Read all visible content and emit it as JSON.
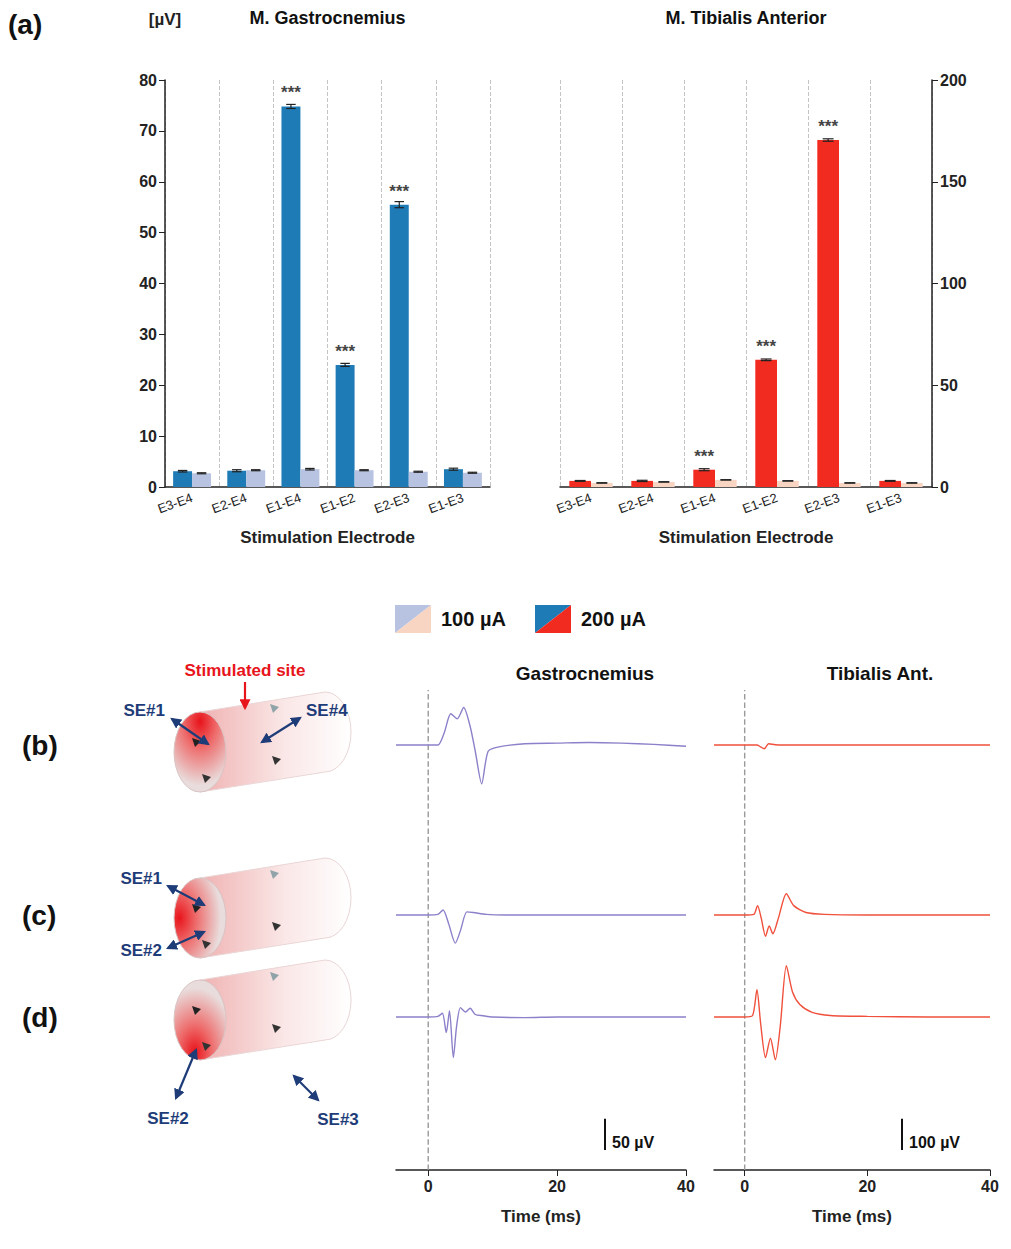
{
  "panel_labels": [
    "(a)",
    "(b)",
    "(c)",
    "(d)"
  ],
  "chart_data": [
    {
      "type": "bar",
      "title": "M. Gastrocnemius",
      "y_label": "[µV]",
      "x_label": "Stimulation Electrode",
      "categories": [
        "E3-E4",
        "E2-E4",
        "E1-E4",
        "E1-E2",
        "E2-E3",
        "E1-E3"
      ],
      "series": [
        {
          "name": "200 µA",
          "color": "#1f7bb6",
          "values": [
            3.1,
            3.2,
            74.8,
            24.0,
            55.5,
            3.5
          ],
          "errors": [
            0.15,
            0.2,
            0.4,
            0.3,
            0.6,
            0.2
          ]
        },
        {
          "name": "100 µA",
          "color": "#b7c3e1",
          "values": [
            2.7,
            3.3,
            3.5,
            3.3,
            3.0,
            2.8
          ],
          "errors": [
            0.1,
            0.1,
            0.15,
            0.1,
            0.1,
            0.1
          ]
        }
      ],
      "annotations": [
        {
          "category": "E1-E4",
          "series": "200 µA",
          "text": "***"
        },
        {
          "category": "E1-E2",
          "series": "200 µA",
          "text": "***"
        },
        {
          "category": "E2-E3",
          "series": "200 µA",
          "text": "***"
        }
      ],
      "ylim": [
        0,
        80
      ],
      "yticks": [
        0,
        10,
        20,
        30,
        40,
        50,
        60,
        70,
        80
      ],
      "grid": true,
      "legend": "bottom"
    },
    {
      "type": "bar",
      "title": "M. Tibialis Anterior",
      "x_label": "Stimulation Electrode",
      "categories": [
        "E3-E4",
        "E2-E4",
        "E1-E4",
        "E1-E2",
        "E2-E3",
        "E1-E3"
      ],
      "series": [
        {
          "name": "200 µA",
          "color": "#f22b20",
          "values": [
            3.0,
            3.0,
            8.5,
            62.5,
            170.5,
            3.0
          ],
          "errors": [
            0.2,
            0.3,
            0.5,
            0.4,
            0.6,
            0.2
          ]
        },
        {
          "name": "100 µA",
          "color": "#f8d5c3",
          "values": [
            2.0,
            2.5,
            3.5,
            3.0,
            2.0,
            2.0
          ],
          "errors": [
            0.1,
            0.1,
            0.1,
            0.1,
            0.1,
            0.1
          ]
        }
      ],
      "annotations": [
        {
          "category": "E1-E4",
          "series": "200 µA",
          "text": "***"
        },
        {
          "category": "E1-E2",
          "series": "200 µA",
          "text": "***"
        },
        {
          "category": "E2-E3",
          "series": "200 µA",
          "text": "***"
        }
      ],
      "ylim": [
        0,
        200
      ],
      "yticks": [
        0,
        50,
        100,
        150,
        200
      ],
      "grid": true,
      "legend": "bottom"
    },
    {
      "type": "line",
      "title": "Gastrocnemius",
      "color": "#8b80c9",
      "x_label": "Time (ms)",
      "xlim": [
        -5,
        40
      ],
      "xticks": [
        0,
        20,
        40
      ],
      "tick_labels": "x",
      "vlines": [
        0
      ],
      "scale_bar": {
        "value": 50,
        "label": "50 µV"
      },
      "series": [
        {
          "panel": "(b)",
          "ylim": [
            -70,
            70
          ],
          "x": [
            -5,
            0,
            1.5,
            2.5,
            3.5,
            4.5,
            5.5,
            6.5,
            7.3,
            8.3,
            9.3,
            11,
            15,
            20,
            25,
            30,
            35,
            40
          ],
          "values": [
            0,
            0,
            0,
            20,
            50,
            42,
            60,
            30,
            -10,
            -62,
            -10,
            -3,
            2,
            3,
            4,
            3,
            1,
            -2
          ]
        },
        {
          "panel": "(c)",
          "ylim": [
            -50,
            50
          ],
          "x": [
            -5,
            0,
            1.5,
            2.3,
            3.2,
            4.2,
            5,
            6,
            7,
            9,
            12,
            20,
            30,
            40
          ],
          "values": [
            0,
            0,
            1,
            8,
            -15,
            -45,
            -25,
            5,
            4,
            1,
            0,
            0,
            0,
            0
          ]
        },
        {
          "panel": "(d)",
          "ylim": [
            -70,
            70
          ],
          "x": [
            -5,
            0,
            1.5,
            2.2,
            2.8,
            3.3,
            3.9,
            4.4,
            5,
            5.8,
            6.5,
            7.3,
            8.5,
            10,
            15,
            20,
            30,
            40
          ],
          "values": [
            0,
            0,
            1,
            6,
            -25,
            10,
            -65,
            -15,
            15,
            8,
            14,
            4,
            2,
            0,
            -1,
            0,
            0,
            0
          ]
        }
      ]
    },
    {
      "type": "line",
      "title": "Tibialis Ant.",
      "color": "#f0503c",
      "x_label": "Time (ms)",
      "xlim": [
        -5,
        40
      ],
      "xticks": [
        0,
        20,
        40
      ],
      "tick_labels": "x",
      "vlines": [
        0
      ],
      "scale_bar": {
        "value": 100,
        "label": "100 µV"
      },
      "series": [
        {
          "panel": "(b)",
          "ylim": [
            -100,
            100
          ],
          "x": [
            -5,
            0,
            2,
            2.6,
            3.2,
            3.9,
            5,
            8,
            20,
            40
          ],
          "values": [
            0,
            0,
            0,
            -6,
            -12,
            4,
            1,
            0,
            0,
            0
          ]
        },
        {
          "panel": "(c)",
          "ylim": [
            -100,
            100
          ],
          "x": [
            -5,
            0,
            1.5,
            2.1,
            2.7,
            3.4,
            4,
            4.6,
            5.5,
            6.8,
            8,
            10,
            13,
            20,
            30,
            40
          ],
          "values": [
            0,
            0,
            2,
            30,
            -10,
            -68,
            -35,
            -60,
            -10,
            68,
            30,
            8,
            2,
            0,
            0,
            0
          ]
        },
        {
          "panel": "(d)",
          "ylim": [
            -150,
            180
          ],
          "x": [
            -5,
            0,
            1.3,
            2,
            2.6,
            3.4,
            4.2,
            5,
            5.8,
            6.8,
            7.8,
            9,
            11,
            14,
            20,
            30,
            40
          ],
          "values": [
            0,
            0,
            5,
            87,
            -20,
            -130,
            -68,
            -137,
            -30,
            164,
            80,
            40,
            15,
            5,
            2,
            0,
            0
          ]
        }
      ]
    }
  ],
  "diagrams": [
    {
      "panel": "(b)",
      "labels": [
        "SE#1",
        "SE#4"
      ],
      "annotation": "Stimulated site"
    },
    {
      "panel": "(c)",
      "labels": [
        "SE#1",
        "SE#2"
      ]
    },
    {
      "panel": "(d)",
      "labels": [
        "SE#2",
        "SE#3"
      ]
    }
  ]
}
